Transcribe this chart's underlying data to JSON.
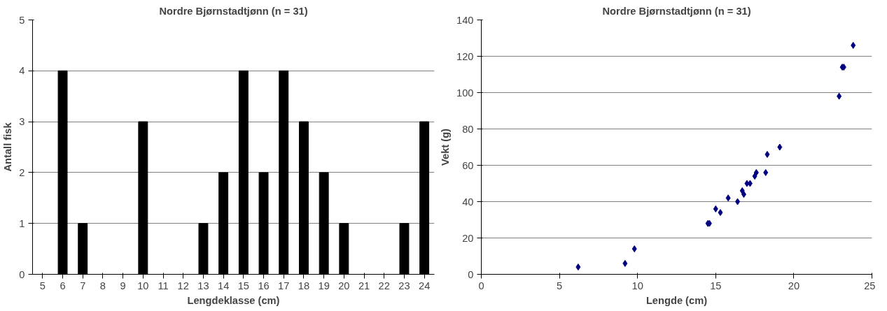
{
  "chart_data": [
    {
      "type": "bar",
      "title": "Nordre Bjørnstadtjønn (n = 31)",
      "xlabel": "Lengdeklasse (cm)",
      "ylabel": "Antall fisk",
      "categories": [
        "5",
        "6",
        "7",
        "8",
        "9",
        "10",
        "11",
        "12",
        "13",
        "14",
        "15",
        "16",
        "17",
        "18",
        "19",
        "20",
        "21",
        "22",
        "23",
        "24"
      ],
      "values": [
        0,
        4,
        1,
        0,
        0,
        3,
        0,
        0,
        1,
        2,
        4,
        2,
        4,
        3,
        2,
        1,
        0,
        0,
        1,
        3
      ],
      "color": "#000000",
      "ylim": [
        0,
        5
      ],
      "yticks": [
        0,
        1,
        2,
        3,
        4,
        5
      ],
      "grid": "y"
    },
    {
      "type": "scatter",
      "title": "Nordre Bjørnstadtjønn (n = 31)",
      "xlabel": "Lengde (cm)",
      "ylabel": "Vekt (g)",
      "x": [
        6.2,
        9.2,
        9.8,
        14.5,
        14.6,
        15.0,
        15.3,
        15.8,
        16.4,
        16.7,
        16.8,
        17.0,
        17.2,
        17.5,
        17.6,
        18.2,
        18.3,
        19.1,
        22.9,
        23.1,
        23.2,
        23.8
      ],
      "values": [
        4,
        6,
        14,
        28,
        28,
        36,
        34,
        42,
        40,
        46,
        44,
        50,
        50,
        54,
        56,
        56,
        66,
        70,
        98,
        114,
        114,
        126
      ],
      "color": "#000080",
      "marker": "diamond",
      "xlim": [
        0,
        25
      ],
      "xticks": [
        0,
        5,
        10,
        15,
        20,
        25
      ],
      "ylim": [
        0,
        140
      ],
      "yticks": [
        0,
        20,
        40,
        60,
        80,
        100,
        120,
        140
      ],
      "grid": "y"
    }
  ]
}
